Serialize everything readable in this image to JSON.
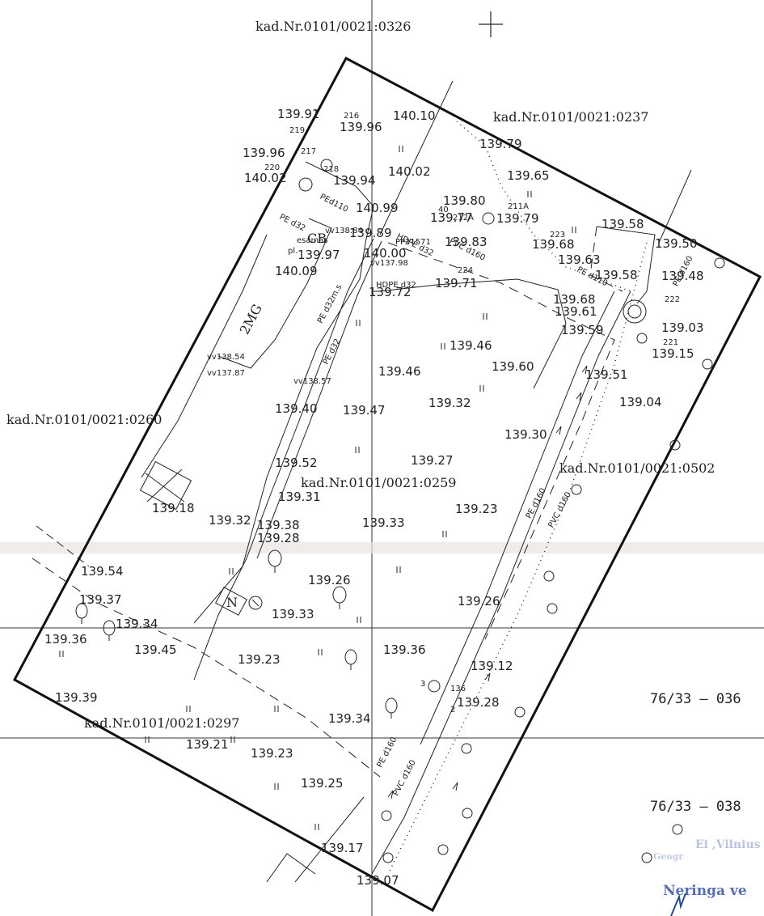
{
  "parcels": {
    "top": "kad.Nr.0101/0021:0326",
    "topright": "kad.Nr.0101/0021:0237",
    "left": "kad.Nr.0101/0021:0260",
    "center": "kad.Nr.0101/0021:0259",
    "right": "kad.Nr.0101/0021:0502",
    "bottomleft": "kad.Nr.0101/0021:0297"
  },
  "grid_refs": [
    "76/33 – 036",
    "76/33 – 038"
  ],
  "building_labels": {
    "garage": "2MG",
    "cb": "CB",
    "north": "N"
  },
  "pipe_labels": [
    "PE d32",
    "PE d32m.s",
    "PEd110",
    "PE d32",
    "HDPE d32",
    "PVC d160",
    "PE d110",
    "PE d160",
    "PE d160",
    "PVC d160",
    "PE d160",
    "PVC d160",
    "HDPE d32"
  ],
  "small_labels": [
    "vv138.54",
    "vv137.87",
    "vv138.57",
    "vv138.84",
    "vv137.98",
    "PP21571",
    "esamas",
    "pl.",
    "216",
    "219",
    "217",
    "218",
    "220",
    "211A",
    "212A",
    "223",
    "224",
    "222",
    "221",
    "40",
    "136",
    "3",
    "2"
  ],
  "elevations": [
    "139.91",
    "139.96",
    "140.10",
    "139.79",
    "139.96",
    "140.02",
    "139.94",
    "140.02",
    "139.65",
    "139.80",
    "140.99",
    "139.79",
    "139.77",
    "139.89",
    "139.83",
    "139.68",
    "139.58",
    "139.50",
    "140.00",
    "139.97",
    "140.09",
    "139.72",
    "139.71",
    "139.63",
    "139.58",
    "139.48",
    "139.68",
    "139.61",
    "139.59",
    "139.03",
    "139.15",
    "139.46",
    "139.46",
    "139.60",
    "139.51",
    "139.04",
    "139.40",
    "139.47",
    "139.32",
    "139.30",
    "139.52",
    "139.27",
    "139.31",
    "139.18",
    "139.23",
    "139.32",
    "139.38",
    "139.33",
    "139.28",
    "139.54",
    "139.26",
    "139.37",
    "139.33",
    "139.26",
    "139.34",
    "139.36",
    "139.45",
    "139.23",
    "139.36",
    "139.12",
    "139.39",
    "139.34",
    "139.28",
    "139.23",
    "139.21",
    "139.25",
    "139.17",
    "139.07"
  ],
  "stamp": {
    "line1": "Ei ,Vilnius",
    "line2": "Geogr",
    "line3": "Neringa ve"
  },
  "colors": {
    "ink": "#1a1a1a",
    "stamp": "#3a55a8",
    "background": "#ffffff"
  }
}
